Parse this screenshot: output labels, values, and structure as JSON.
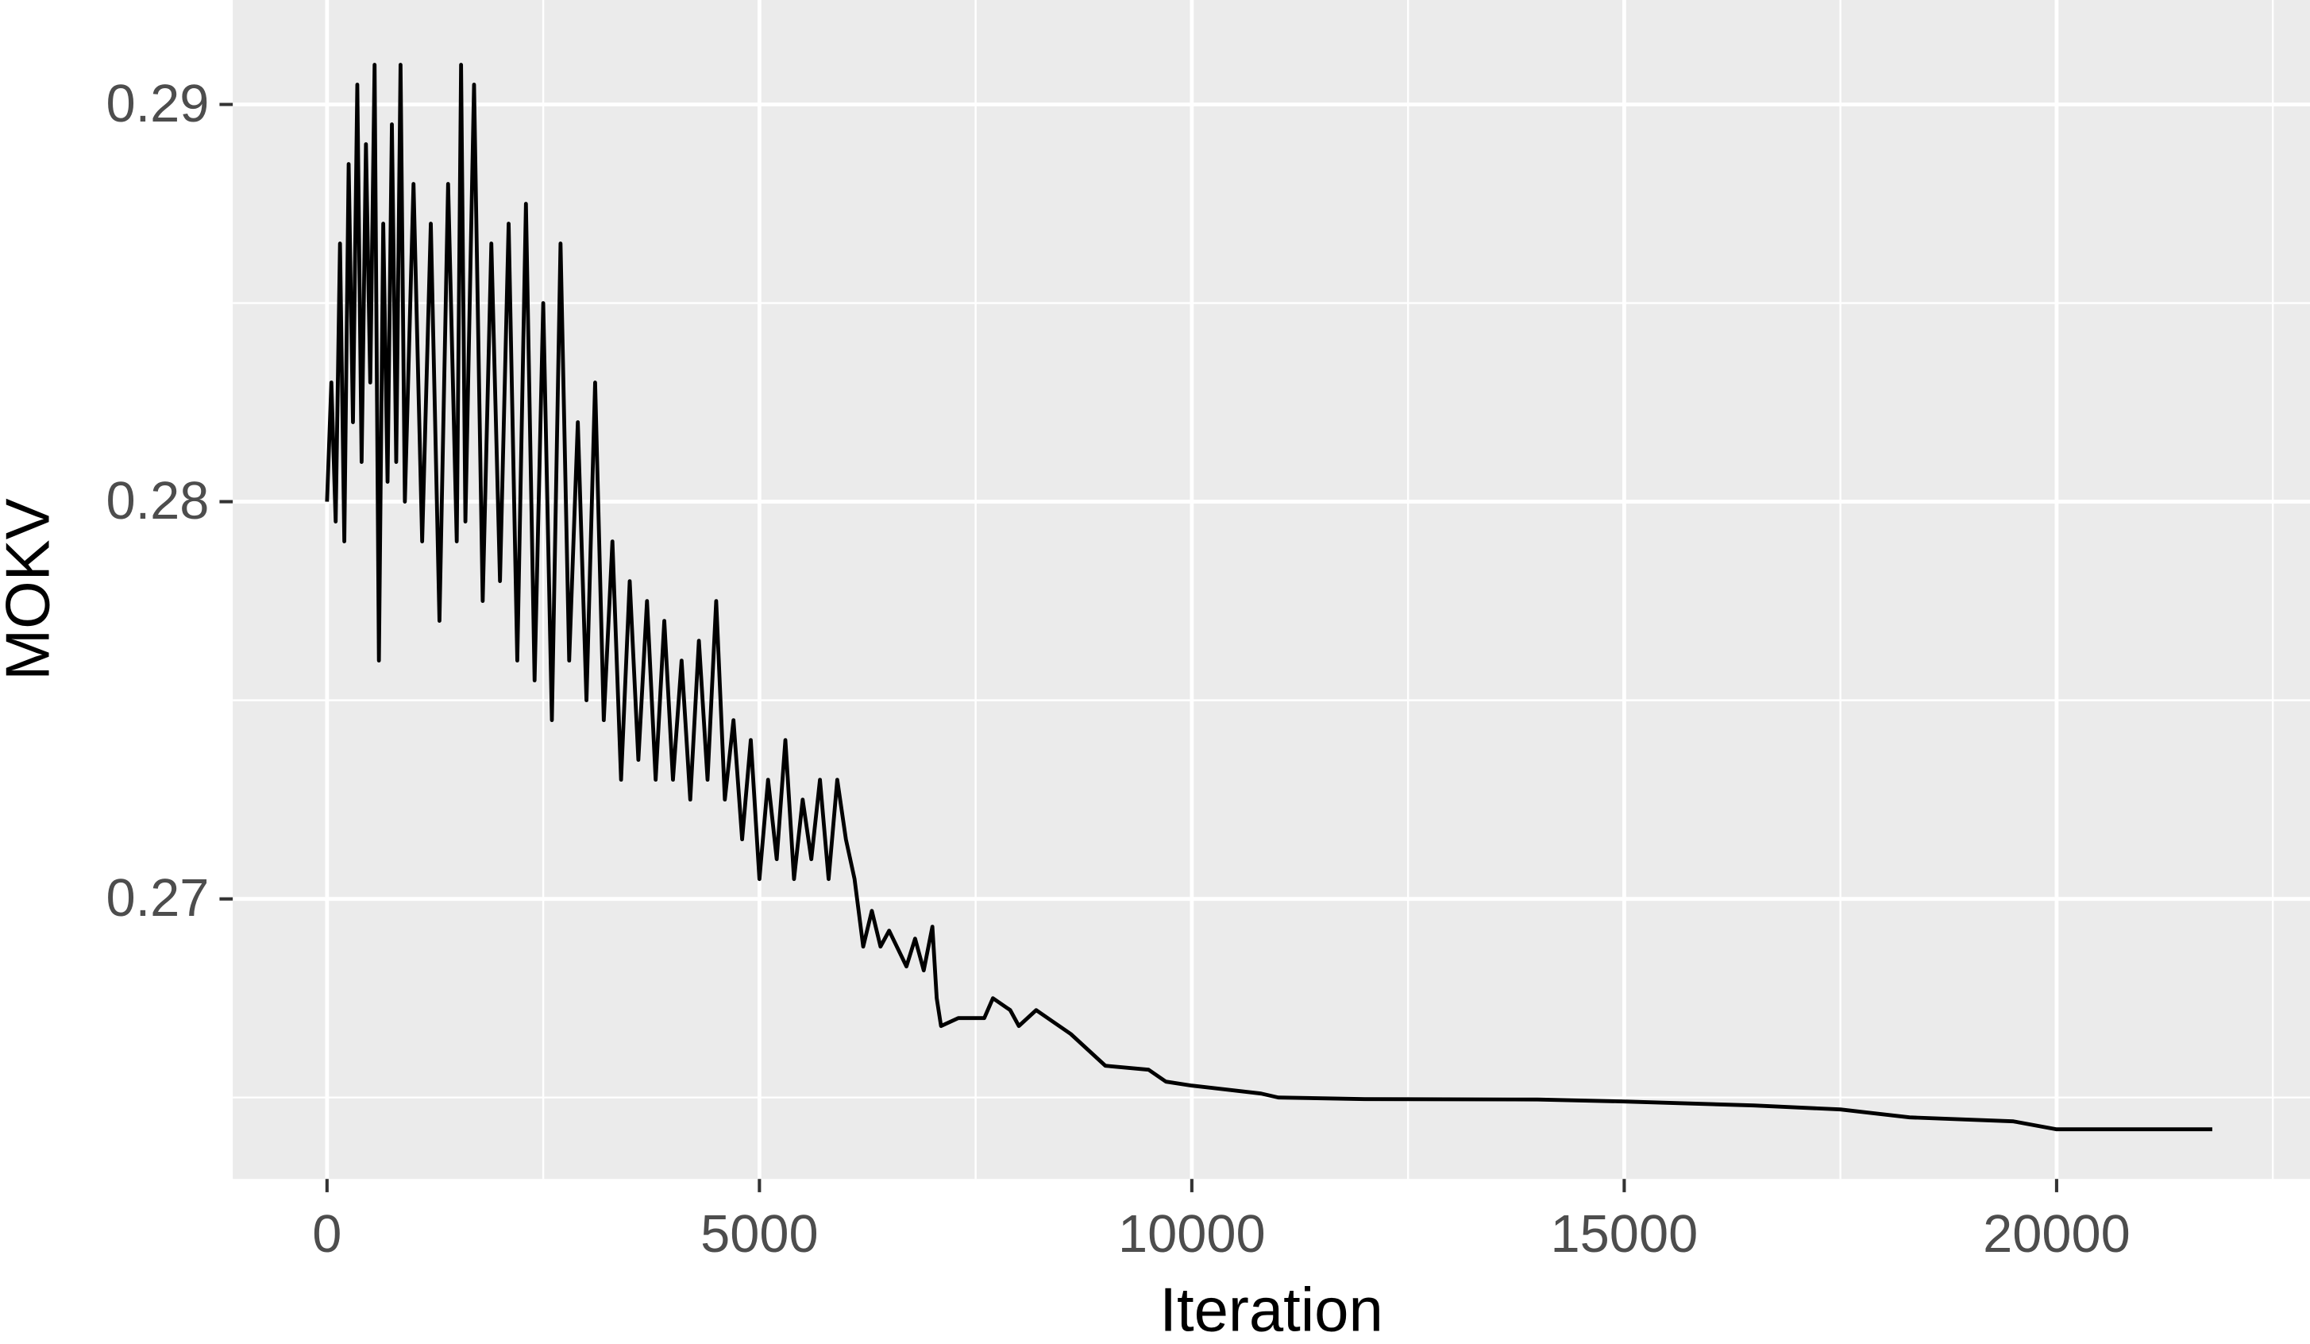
{
  "chart_data": {
    "type": "line",
    "xlabel": "Iteration",
    "ylabel": "MOKV",
    "x": [
      0,
      50,
      100,
      150,
      200,
      250,
      300,
      350,
      400,
      450,
      500,
      550,
      600,
      650,
      700,
      750,
      800,
      850,
      900,
      1000,
      1100,
      1200,
      1300,
      1400,
      1500,
      1550,
      1600,
      1700,
      1800,
      1900,
      2000,
      2100,
      2200,
      2300,
      2400,
      2500,
      2600,
      2700,
      2800,
      2900,
      3000,
      3100,
      3200,
      3300,
      3400,
      3500,
      3600,
      3700,
      3800,
      3900,
      4000,
      4100,
      4200,
      4300,
      4400,
      4500,
      4600,
      4700,
      4800,
      4900,
      5000,
      5100,
      5200,
      5300,
      5400,
      5500,
      5600,
      5700,
      5800,
      5900,
      6000,
      6100,
      6200,
      6300,
      6400,
      6500,
      6700,
      6800,
      6900,
      7000,
      7050,
      7100,
      7300,
      7600,
      7700,
      7900,
      8000,
      8200,
      8400,
      8600,
      8800,
      9000,
      9500,
      9700,
      10000,
      10800,
      11000,
      12000,
      14000,
      15000,
      16500,
      17500,
      18300,
      19500,
      20000,
      21800
    ],
    "values": [
      0.28,
      0.283,
      0.2795,
      0.2865,
      0.279,
      0.2885,
      0.282,
      0.2905,
      0.281,
      0.289,
      0.283,
      0.291,
      0.276,
      0.287,
      0.2805,
      0.2895,
      0.281,
      0.291,
      0.28,
      0.288,
      0.279,
      0.287,
      0.277,
      0.288,
      0.279,
      0.291,
      0.2795,
      0.2905,
      0.2775,
      0.2865,
      0.278,
      0.287,
      0.276,
      0.2875,
      0.2755,
      0.285,
      0.2745,
      0.2865,
      0.276,
      0.282,
      0.275,
      0.283,
      0.2745,
      0.279,
      0.273,
      0.278,
      0.2735,
      0.2775,
      0.273,
      0.277,
      0.273,
      0.276,
      0.2725,
      0.2765,
      0.273,
      0.2775,
      0.2725,
      0.2745,
      0.2715,
      0.274,
      0.2705,
      0.273,
      0.271,
      0.274,
      0.2705,
      0.2725,
      0.271,
      0.273,
      0.2705,
      0.273,
      0.2715,
      0.2705,
      0.2688,
      0.2697,
      0.2688,
      0.2692,
      0.2683,
      0.269,
      0.2682,
      0.2693,
      0.2675,
      0.2668,
      0.267,
      0.267,
      0.2675,
      0.2672,
      0.2668,
      0.2672,
      0.2669,
      0.2666,
      0.2662,
      0.2658,
      0.2657,
      0.2654,
      0.2653,
      0.2651,
      0.265,
      0.26496,
      0.26495,
      0.2649,
      0.2648,
      0.2647,
      0.2645,
      0.2644,
      0.2642,
      0.2642
    ],
    "color": "#000000",
    "xlim": [
      -1090,
      22930
    ],
    "ylim": [
      0.26295,
      0.29263
    ],
    "xticks": [
      0,
      5000,
      10000,
      15000,
      20000
    ],
    "yticks": [
      0.27,
      0.28,
      0.29
    ],
    "grid": true
  }
}
